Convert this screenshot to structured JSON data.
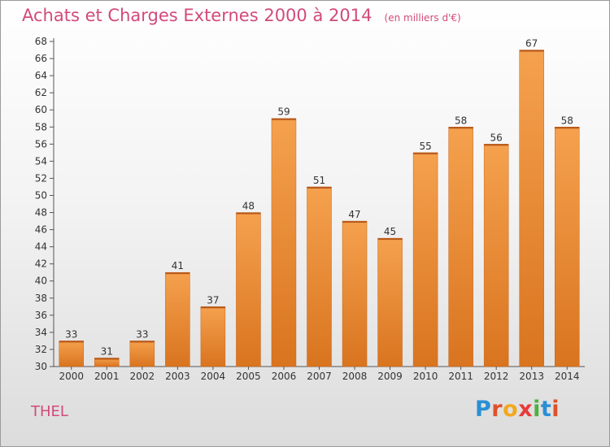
{
  "chart_data": {
    "type": "bar",
    "title": "Achats et Charges Externes 2000 à 2014",
    "subtitle": "(en milliers d'€)",
    "categories": [
      "2000",
      "2001",
      "2002",
      "2003",
      "2004",
      "2005",
      "2006",
      "2007",
      "2008",
      "2009",
      "2010",
      "2011",
      "2012",
      "2013",
      "2014"
    ],
    "values": [
      33,
      31,
      33,
      41,
      37,
      48,
      59,
      51,
      47,
      45,
      55,
      58,
      56,
      67,
      58
    ],
    "ylim": [
      30,
      68
    ],
    "yticks": [
      30,
      32,
      34,
      36,
      38,
      40,
      42,
      44,
      46,
      48,
      50,
      52,
      54,
      56,
      58,
      60,
      62,
      64,
      66,
      68
    ],
    "grid": false,
    "bar_color_top": "#f5a14e",
    "bar_color_bottom": "#d9741f"
  },
  "commune": "THEL",
  "logo": {
    "letters": [
      {
        "ch": "P",
        "color": "#2a8fd4"
      },
      {
        "ch": "r",
        "color": "#e0502a"
      },
      {
        "ch": "o",
        "color": "#f2a81d"
      },
      {
        "ch": "x",
        "color": "#e83a3a"
      },
      {
        "ch": "i",
        "color": "#4fb041"
      },
      {
        "ch": "t",
        "color": "#2a8fd4"
      },
      {
        "ch": "i",
        "color": "#e0502a"
      }
    ]
  }
}
